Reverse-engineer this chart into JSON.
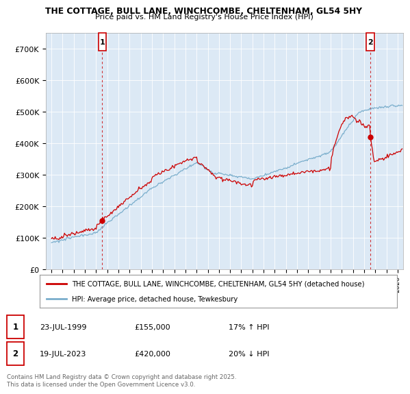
{
  "title1": "THE COTTAGE, BULL LANE, WINCHCOMBE, CHELTENHAM, GL54 5HY",
  "title2": "Price paid vs. HM Land Registry's House Price Index (HPI)",
  "legend_label1": "THE COTTAGE, BULL LANE, WINCHCOMBE, CHELTENHAM, GL54 5HY (detached house)",
  "legend_label2": "HPI: Average price, detached house, Tewkesbury",
  "color_price": "#cc0000",
  "color_hpi": "#7aaecc",
  "annotation1_label": "1",
  "annotation1_date": "23-JUL-1999",
  "annotation1_price": "£155,000",
  "annotation1_hpi": "17% ↑ HPI",
  "annotation2_label": "2",
  "annotation2_date": "19-JUL-2023",
  "annotation2_price": "£420,000",
  "annotation2_hpi": "20% ↓ HPI",
  "footer": "Contains HM Land Registry data © Crown copyright and database right 2025.\nThis data is licensed under the Open Government Licence v3.0.",
  "xlim": [
    1994.5,
    2026.5
  ],
  "ylim": [
    0,
    750000
  ],
  "yticks": [
    0,
    100000,
    200000,
    300000,
    400000,
    500000,
    600000,
    700000
  ],
  "ytick_labels": [
    "£0",
    "£100K",
    "£200K",
    "£300K",
    "£400K",
    "£500K",
    "£600K",
    "£700K"
  ],
  "purchase1_x": 1999.55,
  "purchase1_y": 155000,
  "purchase2_x": 2023.55,
  "purchase2_y": 420000,
  "background_color": "#ffffff",
  "plot_bg_color": "#dce9f5",
  "grid_color": "#ffffff"
}
